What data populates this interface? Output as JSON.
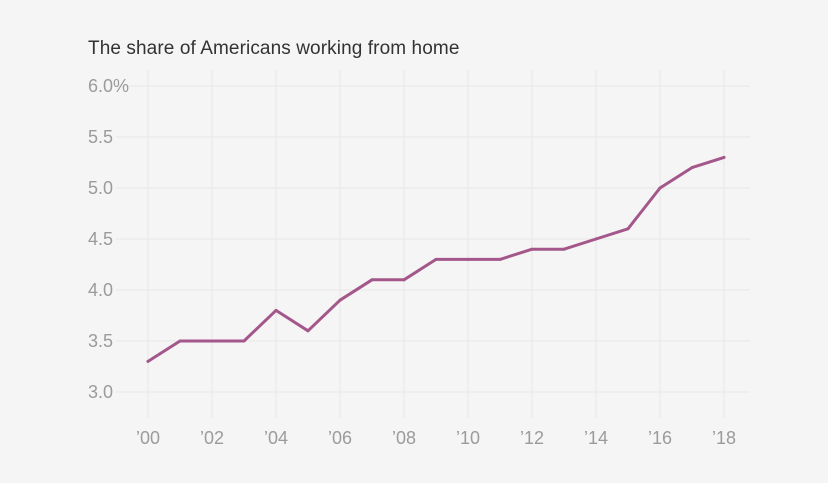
{
  "chart_data": {
    "type": "line",
    "title": "The share of Americans working from home",
    "xlabel": "",
    "ylabel": "",
    "x": [
      2000,
      2001,
      2002,
      2003,
      2004,
      2005,
      2006,
      2007,
      2008,
      2009,
      2010,
      2011,
      2012,
      2013,
      2014,
      2015,
      2016,
      2017,
      2018
    ],
    "series": [
      {
        "name": "Share working from home (%)",
        "values": [
          3.3,
          3.5,
          3.5,
          3.5,
          3.8,
          3.6,
          3.9,
          4.1,
          4.1,
          4.3,
          4.3,
          4.3,
          4.4,
          4.4,
          4.5,
          4.6,
          5.0,
          5.2,
          5.3
        ],
        "color": "#a3578a"
      }
    ],
    "xlim": [
      2000,
      2018
    ],
    "ylim": [
      3.0,
      6.0
    ],
    "y_ticks": [
      {
        "value": 6.0,
        "label": "6.0%"
      },
      {
        "value": 5.5,
        "label": "5.5"
      },
      {
        "value": 5.0,
        "label": "5.0"
      },
      {
        "value": 4.5,
        "label": "4.5"
      },
      {
        "value": 4.0,
        "label": "4.0"
      },
      {
        "value": 3.5,
        "label": "3.5"
      },
      {
        "value": 3.0,
        "label": "3.0"
      }
    ],
    "x_ticks": [
      {
        "value": 2000,
        "label": "’00"
      },
      {
        "value": 2002,
        "label": "’02"
      },
      {
        "value": 2004,
        "label": "’04"
      },
      {
        "value": 2006,
        "label": "’06"
      },
      {
        "value": 2008,
        "label": "’08"
      },
      {
        "value": 2010,
        "label": "’10"
      },
      {
        "value": 2012,
        "label": "’12"
      },
      {
        "value": 2014,
        "label": "’14"
      },
      {
        "value": 2016,
        "label": "’16"
      },
      {
        "value": 2018,
        "label": "’18"
      }
    ],
    "grid": true,
    "colors": {
      "background": "#f6f5f5",
      "gridline": "#e8e6e6",
      "tick_text": "#9b9b9b",
      "title_text": "#333333"
    }
  }
}
